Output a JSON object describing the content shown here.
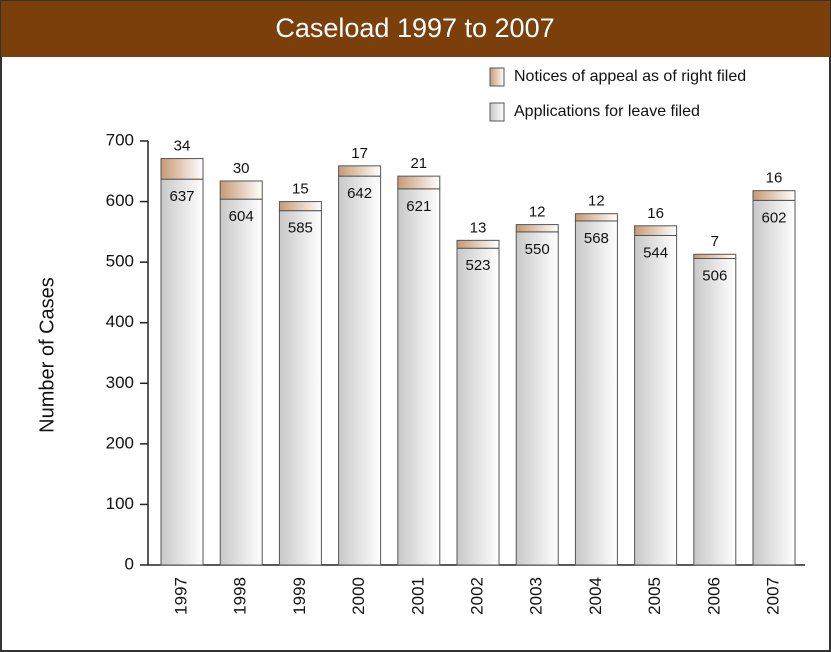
{
  "chart_data": {
    "type": "stacked_bar",
    "title": "Caseload 1997 to 2007",
    "ylabel": "Number of Cases",
    "categories": [
      "1997",
      "1998",
      "1999",
      "2000",
      "2001",
      "2002",
      "2003",
      "2004",
      "2005",
      "2006",
      "2007"
    ],
    "series": [
      {
        "name": "Applications for leave filed",
        "color": "#c8c8c8",
        "values": [
          637,
          604,
          585,
          642,
          621,
          523,
          550,
          568,
          544,
          506,
          602
        ]
      },
      {
        "name": "Notices of appeal as of right filed",
        "color": "#c89a72",
        "values": [
          34,
          30,
          15,
          17,
          21,
          13,
          12,
          12,
          16,
          7,
          16
        ]
      }
    ],
    "ylim": [
      0,
      700
    ],
    "yticks": [
      0,
      100,
      200,
      300,
      400,
      500,
      600,
      700
    ],
    "legend": "top-right"
  }
}
